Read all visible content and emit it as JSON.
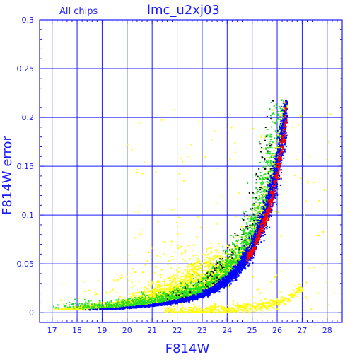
{
  "chart_data": {
    "type": "scatter",
    "title": "lmc_u2xj03",
    "subtitle": "All chips",
    "xlabel": "F814W",
    "ylabel": "F814W error",
    "xlim": [
      16.5,
      28.6
    ],
    "ylim": [
      -0.01,
      0.3
    ],
    "xticks": [
      17,
      18,
      19,
      20,
      21,
      22,
      23,
      24,
      25,
      26,
      27,
      28
    ],
    "yticks": [
      0,
      0.05,
      0.1,
      0.15,
      0.2,
      0.25,
      0.3
    ],
    "ytick_labels": [
      "0",
      "0.05",
      "0.1",
      "0.15",
      "0.2",
      "0.25",
      "0.3"
    ],
    "grid": true,
    "colors": {
      "axes": "#1a1aff",
      "yellow": "#ffff00",
      "green": "#22dd22",
      "blue": "#0000ff",
      "red": "#ff0000",
      "black": "#000000",
      "background": "#ffffff"
    },
    "series": [
      {
        "color": "blue",
        "description_points": [
          [
            18.5,
            0.003
          ],
          [
            19.5,
            0.004
          ],
          [
            20.5,
            0.006
          ],
          [
            21.5,
            0.009
          ],
          [
            22.5,
            0.014
          ],
          [
            23.0,
            0.018
          ],
          [
            23.5,
            0.024
          ],
          [
            24.0,
            0.033
          ],
          [
            24.5,
            0.046
          ],
          [
            25.0,
            0.066
          ],
          [
            25.5,
            0.098
          ],
          [
            25.8,
            0.125
          ],
          [
            26.0,
            0.15
          ],
          [
            26.2,
            0.18
          ],
          [
            26.4,
            0.215
          ]
        ]
      },
      {
        "color": "yellow",
        "description_points": [
          [
            17.5,
            0.004
          ],
          [
            19.5,
            0.008
          ],
          [
            20.5,
            0.015
          ],
          [
            21.5,
            0.025
          ],
          [
            22.0,
            0.03
          ],
          [
            22.5,
            0.035
          ],
          [
            23.0,
            0.04
          ],
          [
            23.5,
            0.045
          ],
          [
            24.0,
            0.05
          ],
          [
            24.5,
            0.055
          ],
          [
            25.0,
            0.075
          ],
          [
            25.5,
            0.11
          ],
          [
            26.0,
            0.16
          ],
          [
            26.3,
            0.21
          ]
        ]
      },
      {
        "color": "yellow-low",
        "description_points": [
          [
            22.0,
            0.002
          ],
          [
            23.0,
            0.002
          ],
          [
            24.0,
            0.003
          ],
          [
            25.0,
            0.005
          ],
          [
            26.0,
            0.01
          ],
          [
            26.5,
            0.015
          ],
          [
            27.0,
            0.025
          ]
        ]
      }
    ]
  }
}
